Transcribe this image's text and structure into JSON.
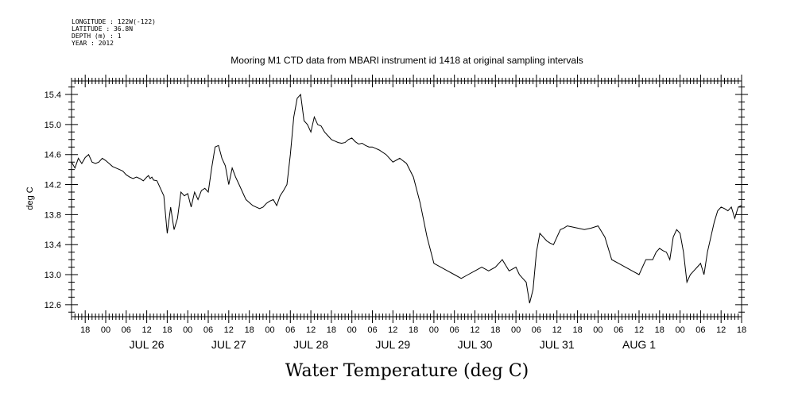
{
  "meta": {
    "longitude": "LONGITUDE : 122W(-122)",
    "latitude": "LATITUDE : 36.8N",
    "depth": "DEPTH (m) : 1",
    "year": "YEAR : 2012"
  },
  "chart_data": {
    "type": "line",
    "title": "Mooring M1 CTD data from MBARI instrument id 1418 at original sampling intervals",
    "xlabel": "Water Temperature (deg C)",
    "ylabel": "deg C",
    "xlim_hours": [
      -10,
      186
    ],
    "ylim": [
      12.44,
      15.58
    ],
    "yticks": [
      "12.6",
      "13.0",
      "13.4",
      "13.8",
      "14.2",
      "14.6",
      "15.0",
      "15.4"
    ],
    "hour_ticks": [
      "00",
      "06",
      "12",
      "18"
    ],
    "days": [
      "JUL 26",
      "JUL 27",
      "JUL 28",
      "JUL 29",
      "JUL 30",
      "JUL 31",
      "AUG 1"
    ],
    "series": [
      {
        "hours_since_jul26": [
          -10,
          -9,
          -8,
          -7,
          -6,
          -5,
          -4,
          -3,
          -2,
          -1,
          0,
          1,
          2,
          3,
          4,
          5,
          6,
          7,
          8,
          9,
          10,
          11,
          12,
          12.5,
          13,
          13.5,
          14,
          15,
          16,
          17,
          18,
          19,
          20,
          21,
          22,
          23,
          24,
          25,
          26,
          27,
          28,
          29,
          30,
          31,
          32,
          33,
          34,
          35,
          36,
          37,
          38,
          39,
          40,
          41,
          42,
          43,
          44,
          45,
          46,
          47,
          48,
          49,
          50,
          51,
          52,
          53,
          54,
          55,
          56,
          57,
          58,
          59,
          60,
          61,
          62,
          63,
          64,
          65,
          66,
          67,
          68,
          69,
          70,
          71,
          72,
          73,
          74,
          75,
          76,
          77,
          78,
          79,
          80,
          82,
          84,
          86,
          88,
          90,
          92,
          94,
          96,
          98,
          100,
          102,
          104,
          106,
          108,
          110,
          112,
          114,
          116,
          118,
          120,
          121,
          122,
          123,
          124,
          125,
          126,
          127,
          128,
          129,
          130,
          131,
          132,
          133,
          134,
          135,
          136,
          138,
          140,
          142,
          144,
          146,
          148,
          150,
          152,
          154,
          156,
          158,
          160,
          161,
          162,
          163,
          164,
          165,
          166,
          167,
          168,
          169,
          170,
          171,
          172,
          173,
          174,
          175,
          176,
          177,
          178,
          179,
          180,
          181,
          182,
          183,
          184,
          185,
          186
        ],
        "values": [
          14.5,
          14.42,
          14.55,
          14.48,
          14.56,
          14.6,
          14.5,
          14.48,
          14.5,
          14.55,
          14.52,
          14.48,
          14.44,
          14.42,
          14.4,
          14.38,
          14.33,
          14.3,
          14.28,
          14.3,
          14.28,
          14.25,
          14.3,
          14.32,
          14.28,
          14.3,
          14.26,
          14.25,
          14.15,
          14.05,
          13.55,
          13.9,
          13.6,
          13.75,
          14.1,
          14.05,
          14.08,
          13.9,
          14.1,
          14.0,
          14.12,
          14.15,
          14.1,
          14.42,
          14.7,
          14.72,
          14.55,
          14.45,
          14.2,
          14.42,
          14.3,
          14.2,
          14.1,
          14.0,
          13.96,
          13.92,
          13.9,
          13.88,
          13.9,
          13.95,
          13.98,
          14.0,
          13.92,
          14.05,
          14.12,
          14.2,
          14.6,
          15.1,
          15.35,
          15.4,
          15.05,
          15.0,
          14.9,
          15.1,
          15.0,
          14.98,
          14.9,
          14.85,
          14.8,
          14.78,
          14.76,
          14.75,
          14.76,
          14.8,
          14.82,
          14.77,
          14.74,
          14.75,
          14.72,
          14.7,
          14.7,
          14.68,
          14.66,
          14.6,
          14.5,
          14.55,
          14.48,
          14.3,
          13.95,
          13.5,
          13.15,
          13.1,
          13.05,
          13.0,
          12.95,
          13.0,
          13.05,
          13.1,
          13.05,
          13.1,
          13.2,
          13.05,
          13.1,
          13.0,
          12.95,
          12.9,
          12.62,
          12.8,
          13.3,
          13.55,
          13.5,
          13.45,
          13.42,
          13.4,
          13.5,
          13.6,
          13.62,
          13.65,
          13.64,
          13.62,
          13.6,
          13.62,
          13.65,
          13.5,
          13.2,
          13.15,
          13.1,
          13.05,
          13.0,
          13.2,
          13.2,
          13.3,
          13.35,
          13.32,
          13.3,
          13.2,
          13.5,
          13.6,
          13.55,
          13.3,
          12.9,
          13.0,
          13.05,
          13.1,
          13.15,
          13.0,
          13.3,
          13.5,
          13.7,
          13.85,
          13.9,
          13.88,
          13.85,
          13.9,
          13.75,
          13.9,
          13.92,
          13.95,
          14.0,
          14.02,
          13.95
        ]
      }
    ]
  }
}
